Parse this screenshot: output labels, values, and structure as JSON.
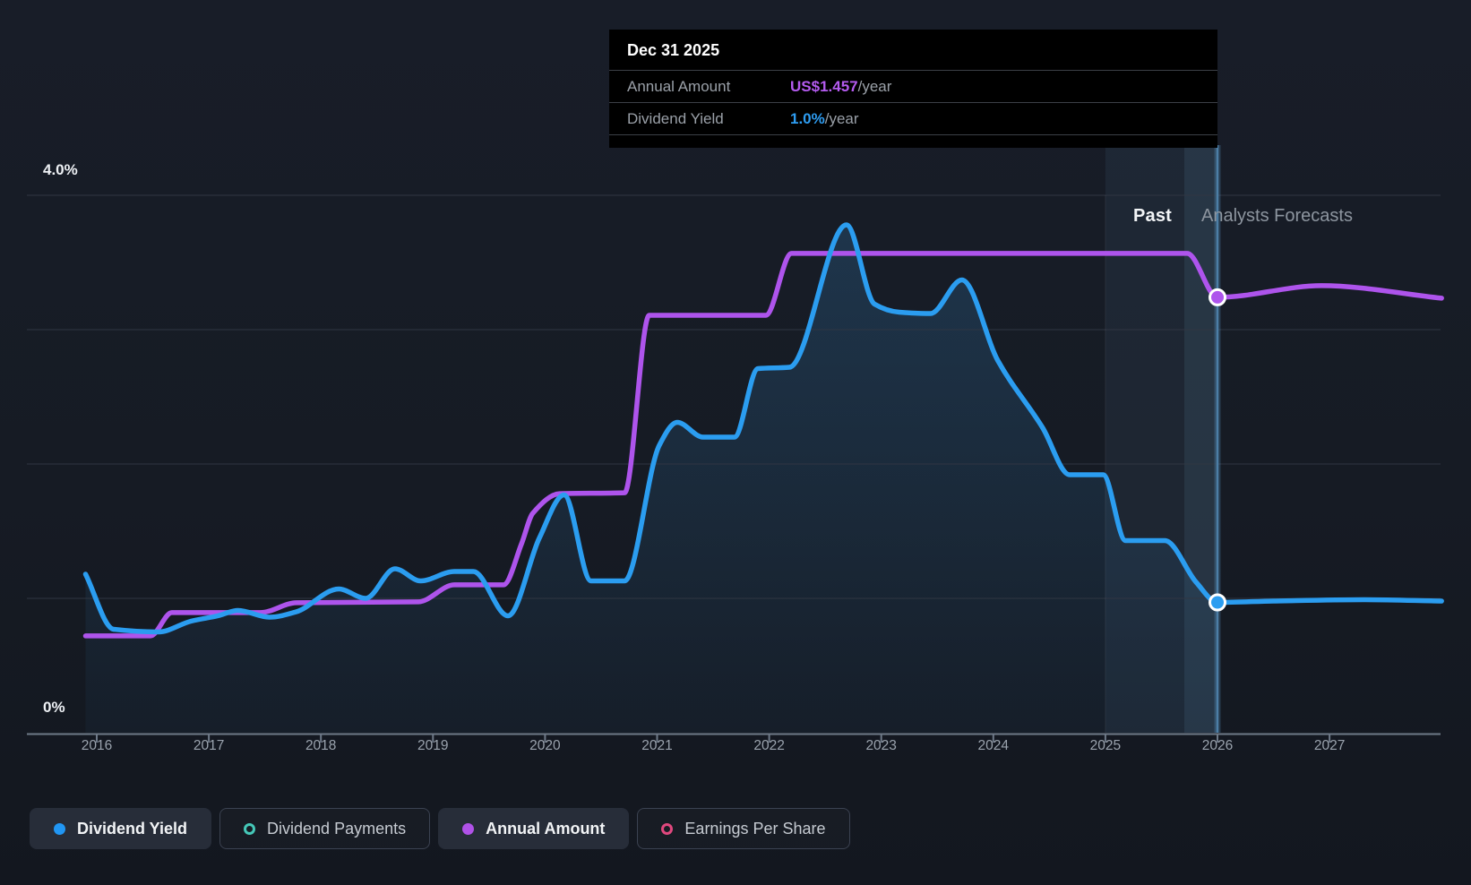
{
  "tooltip": {
    "title": "Dec 31 2025",
    "rows": [
      {
        "label": "Annual Amount",
        "value": "US$1.457",
        "suffix": "/year",
        "color": "#b45bef"
      },
      {
        "label": "Dividend Yield",
        "value": "1.0%",
        "suffix": "/year",
        "color": "#2e9df2"
      }
    ]
  },
  "annotations": {
    "past": "Past",
    "forecast": "Analysts Forecasts"
  },
  "axes": {
    "y_top_label": "4.0%",
    "y_bottom_label": "0%",
    "years": [
      "2016",
      "2017",
      "2018",
      "2019",
      "2020",
      "2021",
      "2022",
      "2023",
      "2024",
      "2025",
      "2026",
      "2027"
    ]
  },
  "legend": [
    {
      "label": "Dividend Yield",
      "color": "#2196f3",
      "style": "filled",
      "active": true
    },
    {
      "label": "Dividend Payments",
      "color": "#45c8b8",
      "style": "hollow",
      "active": false
    },
    {
      "label": "Annual Amount",
      "color": "#b052e8",
      "style": "filled",
      "active": true
    },
    {
      "label": "Earnings Per Share",
      "color": "#e0487e",
      "style": "hollow",
      "active": false
    }
  ],
  "colors": {
    "background": "#161b24",
    "blue_line": "#2b9df0",
    "purple_line": "#ae54ec",
    "gridline": "#303642",
    "axis": "#6e7988",
    "divider": "#4c7ea6",
    "tooltip_bg": "#000000",
    "past_band": "rgba(109,156,196,0.09)",
    "past_band_bright": "rgba(130,185,225,0.10)"
  },
  "chart_data": {
    "type": "line",
    "title": "Dividend history and forecast",
    "x_range": [
      2015.9,
      2028.0
    ],
    "y_left": {
      "label": "Dividend Yield %",
      "range": [
        0,
        4
      ],
      "gridline_step_pct": 1,
      "shown_tick_labels": [
        "0%",
        "4.0%"
      ]
    },
    "grid": true,
    "legend_position": "bottom",
    "divider_year": 2026,
    "divider_tooltip_date": "Dec 31 2025",
    "highlight_range_years": [
      2025,
      2026
    ],
    "region_labels": {
      "left": "Past",
      "right": "Analysts Forecasts"
    },
    "series": [
      {
        "name": "Dividend Yield",
        "unit": "%",
        "color": "#2b9df0",
        "area_fill_until": 2026,
        "points": [
          [
            2015.9,
            1.18
          ],
          [
            2016.15,
            0.77
          ],
          [
            2016.55,
            0.75
          ],
          [
            2016.84,
            0.83
          ],
          [
            2017.08,
            0.87
          ],
          [
            2017.26,
            0.91
          ],
          [
            2017.54,
            0.86
          ],
          [
            2017.78,
            0.9
          ],
          [
            2018.16,
            1.07
          ],
          [
            2018.4,
            1.0
          ],
          [
            2018.66,
            1.22
          ],
          [
            2018.89,
            1.13
          ],
          [
            2019.19,
            1.2
          ],
          [
            2019.36,
            1.2
          ],
          [
            2019.67,
            0.87
          ],
          [
            2019.95,
            1.45
          ],
          [
            2020.17,
            1.77
          ],
          [
            2020.41,
            1.13
          ],
          [
            2020.71,
            1.13
          ],
          [
            2021.02,
            2.14
          ],
          [
            2021.18,
            2.31
          ],
          [
            2021.41,
            2.2
          ],
          [
            2021.69,
            2.2
          ],
          [
            2021.9,
            2.71
          ],
          [
            2022.18,
            2.72
          ],
          [
            2022.69,
            3.78
          ],
          [
            2022.94,
            3.19
          ],
          [
            2023.16,
            3.13
          ],
          [
            2023.44,
            3.12
          ],
          [
            2023.72,
            3.37
          ],
          [
            2024.04,
            2.77
          ],
          [
            2024.44,
            2.27
          ],
          [
            2024.68,
            1.92
          ],
          [
            2024.98,
            1.92
          ],
          [
            2025.18,
            1.43
          ],
          [
            2025.53,
            1.43
          ],
          [
            2025.81,
            1.12
          ],
          [
            2026.0,
            0.97
          ],
          [
            2026.5,
            0.98
          ],
          [
            2027.3,
            0.99
          ],
          [
            2028.0,
            0.98
          ]
        ]
      },
      {
        "name": "Annual Amount",
        "unit": "US$/year",
        "color": "#ae54ec",
        "points": [
          [
            2015.9,
            0.324
          ],
          [
            2016.48,
            0.324
          ],
          [
            2016.67,
            0.402
          ],
          [
            2017.46,
            0.402
          ],
          [
            2017.78,
            0.435
          ],
          [
            2018.87,
            0.438
          ],
          [
            2019.19,
            0.495
          ],
          [
            2019.63,
            0.495
          ],
          [
            2019.79,
            0.632
          ],
          [
            2019.89,
            0.734
          ],
          [
            2020.13,
            0.8
          ],
          [
            2020.71,
            0.803
          ],
          [
            2020.93,
            1.397
          ],
          [
            2021.97,
            1.397
          ],
          [
            2022.2,
            1.604
          ],
          [
            2025.73,
            1.604
          ],
          [
            2026.0,
            1.457
          ],
          [
            2026.93,
            1.496
          ],
          [
            2028.0,
            1.454
          ]
        ]
      }
    ],
    "markers": [
      {
        "series": "Annual Amount",
        "year": 2026,
        "value": 1.457,
        "display": "US$1.457/year"
      },
      {
        "series": "Dividend Yield",
        "year": 2026,
        "value": 0.97,
        "display": "1.0%/year"
      }
    ]
  }
}
